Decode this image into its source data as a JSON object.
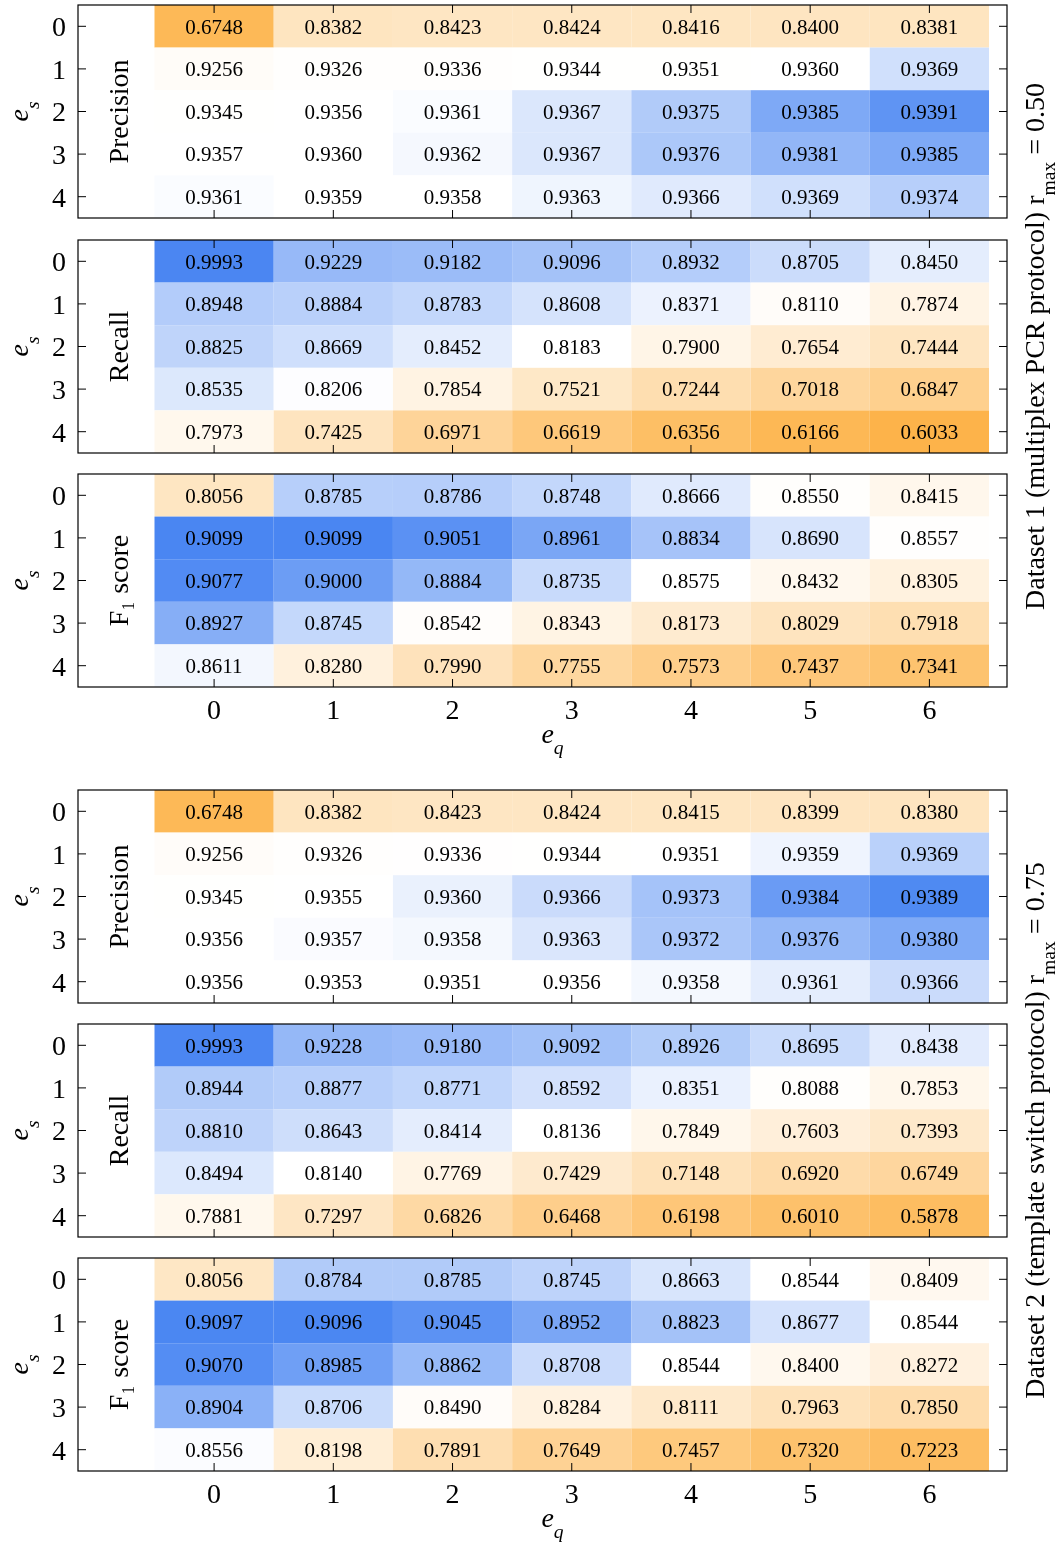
{
  "chart_data": [
    {
      "type": "heatmap",
      "title": "Precision",
      "ylabel": "e$_{s}$",
      "categories": [
        "0",
        "1",
        "2",
        "3",
        "4",
        "5",
        "6"
      ],
      "y_categories": [
        "0",
        "1",
        "2",
        "3",
        "4"
      ],
      "tick_labels": "y",
      "cells": [
        [
          0.6748,
          0.8382,
          0.8423,
          0.8424,
          0.8416,
          0.84,
          0.8381
        ],
        [
          0.9256,
          0.9326,
          0.9336,
          0.9344,
          0.9351,
          0.936,
          0.9369
        ],
        [
          0.9345,
          0.9356,
          0.9361,
          0.9367,
          0.9375,
          0.9385,
          0.9391
        ],
        [
          0.9357,
          0.936,
          0.9362,
          0.9367,
          0.9376,
          0.9381,
          0.9385
        ],
        [
          0.9361,
          0.9359,
          0.9358,
          0.9363,
          0.9366,
          0.9369,
          0.9374
        ]
      ],
      "cell_labels": [
        [
          "0.6748",
          "0.8382",
          "0.8423",
          "0.8424",
          "0.8416",
          "0.8400",
          "0.8381"
        ],
        [
          "0.9256",
          "0.9326",
          "0.9336",
          "0.9344",
          "0.9351",
          "0.9360",
          "0.9369"
        ],
        [
          "0.9345",
          "0.9356",
          "0.9361",
          "0.9367",
          "0.9375",
          "0.9385",
          "0.9391"
        ],
        [
          "0.9357",
          "0.9360",
          "0.9362",
          "0.9367",
          "0.9376",
          "0.9381",
          "0.9385"
        ],
        [
          "0.9361",
          "0.9359",
          "0.9358",
          "0.9363",
          "0.9366",
          "0.9369",
          "0.9374"
        ]
      ]
    },
    {
      "type": "heatmap",
      "title": "Recall",
      "ylabel": "e$_{s}$",
      "categories": [
        "0",
        "1",
        "2",
        "3",
        "4",
        "5",
        "6"
      ],
      "y_categories": [
        "0",
        "1",
        "2",
        "3",
        "4"
      ],
      "tick_labels": "y",
      "annotations": [
        "Dataset 1 (multiplex PCR protocol) r$_{max}$ = 0.50"
      ],
      "cells": [
        [
          0.9993,
          0.9229,
          0.9182,
          0.9096,
          0.8932,
          0.8705,
          0.845
        ],
        [
          0.8948,
          0.8884,
          0.8783,
          0.8608,
          0.8371,
          0.811,
          0.7874
        ],
        [
          0.8825,
          0.8669,
          0.8452,
          0.8183,
          0.79,
          0.7654,
          0.7444
        ],
        [
          0.8535,
          0.8206,
          0.7854,
          0.7521,
          0.7244,
          0.7018,
          0.6847
        ],
        [
          0.7973,
          0.7425,
          0.6971,
          0.6619,
          0.6356,
          0.6166,
          0.6033
        ]
      ],
      "cell_labels": [
        [
          "0.9993",
          "0.9229",
          "0.9182",
          "0.9096",
          "0.8932",
          "0.8705",
          "0.8450"
        ],
        [
          "0.8948",
          "0.8884",
          "0.8783",
          "0.8608",
          "0.8371",
          "0.8110",
          "0.7874"
        ],
        [
          "0.8825",
          "0.8669",
          "0.8452",
          "0.8183",
          "0.7900",
          "0.7654",
          "0.7444"
        ],
        [
          "0.8535",
          "0.8206",
          "0.7854",
          "0.7521",
          "0.7244",
          "0.7018",
          "0.6847"
        ],
        [
          "0.7973",
          "0.7425",
          "0.6971",
          "0.6619",
          "0.6356",
          "0.6166",
          "0.6033"
        ]
      ]
    },
    {
      "type": "heatmap",
      "title": "F₁ score",
      "ylabel": "e$_{s}$",
      "xlabel": "e$_{q}$",
      "categories": [
        "0",
        "1",
        "2",
        "3",
        "4",
        "5",
        "6"
      ],
      "y_categories": [
        "0",
        "1",
        "2",
        "3",
        "4"
      ],
      "cells": [
        [
          0.8056,
          0.8785,
          0.8786,
          0.8748,
          0.8666,
          0.855,
          0.8415
        ],
        [
          0.9099,
          0.9099,
          0.9051,
          0.8961,
          0.8834,
          0.869,
          0.8557
        ],
        [
          0.9077,
          0.9,
          0.8884,
          0.8735,
          0.8575,
          0.8432,
          0.8305
        ],
        [
          0.8927,
          0.8745,
          0.8542,
          0.8343,
          0.8173,
          0.8029,
          0.7918
        ],
        [
          0.8611,
          0.828,
          0.799,
          0.7755,
          0.7573,
          0.7437,
          0.7341
        ]
      ],
      "cell_labels": [
        [
          "0.8056",
          "0.8785",
          "0.8786",
          "0.8748",
          "0.8666",
          "0.8550",
          "0.8415"
        ],
        [
          "0.9099",
          "0.9099",
          "0.9051",
          "0.8961",
          "0.8834",
          "0.8690",
          "0.8557"
        ],
        [
          "0.9077",
          "0.9000",
          "0.8884",
          "0.8735",
          "0.8575",
          "0.8432",
          "0.8305"
        ],
        [
          "0.8927",
          "0.8745",
          "0.8542",
          "0.8343",
          "0.8173",
          "0.8029",
          "0.7918"
        ],
        [
          "0.8611",
          "0.8280",
          "0.7990",
          "0.7755",
          "0.7573",
          "0.7437",
          "0.7341"
        ]
      ]
    },
    {
      "type": "heatmap",
      "title": "Precision",
      "ylabel": "e$_{s}$",
      "categories": [
        "0",
        "1",
        "2",
        "3",
        "4",
        "5",
        "6"
      ],
      "y_categories": [
        "0",
        "1",
        "2",
        "3",
        "4"
      ],
      "tick_labels": "y",
      "cells": [
        [
          0.6748,
          0.8382,
          0.8423,
          0.8424,
          0.8415,
          0.8399,
          0.838
        ],
        [
          0.9256,
          0.9326,
          0.9336,
          0.9344,
          0.9351,
          0.9359,
          0.9369
        ],
        [
          0.9345,
          0.9355,
          0.936,
          0.9366,
          0.9373,
          0.9384,
          0.9389
        ],
        [
          0.9356,
          0.9357,
          0.9358,
          0.9363,
          0.9372,
          0.9376,
          0.938
        ],
        [
          0.9356,
          0.9353,
          0.9351,
          0.9356,
          0.9358,
          0.9361,
          0.9366
        ]
      ],
      "cell_labels": [
        [
          "0.6748",
          "0.8382",
          "0.8423",
          "0.8424",
          "0.8415",
          "0.8399",
          "0.8380"
        ],
        [
          "0.9256",
          "0.9326",
          "0.9336",
          "0.9344",
          "0.9351",
          "0.9359",
          "0.9369"
        ],
        [
          "0.9345",
          "0.9355",
          "0.9360",
          "0.9366",
          "0.9373",
          "0.9384",
          "0.9389"
        ],
        [
          "0.9356",
          "0.9357",
          "0.9358",
          "0.9363",
          "0.9372",
          "0.9376",
          "0.9380"
        ],
        [
          "0.9356",
          "0.9353",
          "0.9351",
          "0.9356",
          "0.9358",
          "0.9361",
          "0.9366"
        ]
      ]
    },
    {
      "type": "heatmap",
      "title": "Recall",
      "ylabel": "e$_{s}$",
      "categories": [
        "0",
        "1",
        "2",
        "3",
        "4",
        "5",
        "6"
      ],
      "y_categories": [
        "0",
        "1",
        "2",
        "3",
        "4"
      ],
      "tick_labels": "y",
      "annotations": [
        "Dataset 2 (template switch protocol) r$_{max}$ = 0.75"
      ],
      "cells": [
        [
          0.9993,
          0.9228,
          0.918,
          0.9092,
          0.8926,
          0.8695,
          0.8438
        ],
        [
          0.8944,
          0.8877,
          0.8771,
          0.8592,
          0.8351,
          0.8088,
          0.7853
        ],
        [
          0.881,
          0.8643,
          0.8414,
          0.8136,
          0.7849,
          0.7603,
          0.7393
        ],
        [
          0.8494,
          0.814,
          0.7769,
          0.7429,
          0.7148,
          0.692,
          0.6749
        ],
        [
          0.7881,
          0.7297,
          0.6826,
          0.6468,
          0.6198,
          0.601,
          0.5878
        ]
      ],
      "cell_labels": [
        [
          "0.9993",
          "0.9228",
          "0.9180",
          "0.9092",
          "0.8926",
          "0.8695",
          "0.8438"
        ],
        [
          "0.8944",
          "0.8877",
          "0.8771",
          "0.8592",
          "0.8351",
          "0.8088",
          "0.7853"
        ],
        [
          "0.8810",
          "0.8643",
          "0.8414",
          "0.8136",
          "0.7849",
          "0.7603",
          "0.7393"
        ],
        [
          "0.8494",
          "0.8140",
          "0.7769",
          "0.7429",
          "0.7148",
          "0.6920",
          "0.6749"
        ],
        [
          "0.7881",
          "0.7297",
          "0.6826",
          "0.6468",
          "0.6198",
          "0.6010",
          "0.5878"
        ]
      ]
    },
    {
      "type": "heatmap",
      "title": "F₁ score",
      "ylabel": "e$_{s}$",
      "xlabel": "e$_{q}$",
      "categories": [
        "0",
        "1",
        "2",
        "3",
        "4",
        "5",
        "6"
      ],
      "y_categories": [
        "0",
        "1",
        "2",
        "3",
        "4"
      ],
      "cells": [
        [
          0.8056,
          0.8784,
          0.8785,
          0.8745,
          0.8663,
          0.8544,
          0.8409
        ],
        [
          0.9097,
          0.9096,
          0.9045,
          0.8952,
          0.8823,
          0.8677,
          0.8544
        ],
        [
          0.907,
          0.8985,
          0.8862,
          0.8708,
          0.8544,
          0.84,
          0.8272
        ],
        [
          0.8904,
          0.8706,
          0.849,
          0.8284,
          0.8111,
          0.7963,
          0.785
        ],
        [
          0.8556,
          0.8198,
          0.7891,
          0.7649,
          0.7457,
          0.732,
          0.7223
        ]
      ],
      "cell_labels": [
        [
          "0.8056",
          "0.8784",
          "0.8785",
          "0.8745",
          "0.8663",
          "0.8544",
          "0.8409"
        ],
        [
          "0.9097",
          "0.9096",
          "0.9045",
          "0.8952",
          "0.8823",
          "0.8677",
          "0.8544"
        ],
        [
          "0.9070",
          "0.8985",
          "0.8862",
          "0.8708",
          "0.8544",
          "0.8400",
          "0.8272"
        ],
        [
          "0.8904",
          "0.8706",
          "0.8490",
          "0.8284",
          "0.8111",
          "0.7963",
          "0.7850"
        ],
        [
          "0.8556",
          "0.8198",
          "0.7891",
          "0.7649",
          "0.7457",
          "0.7320",
          "0.7223"
        ]
      ]
    }
  ]
}
